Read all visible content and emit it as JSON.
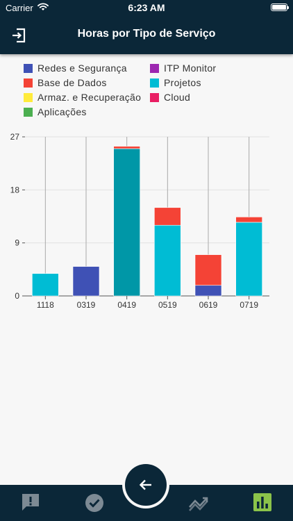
{
  "status_bar": {
    "carrier": "Carrier",
    "time": "6:23 AM"
  },
  "header": {
    "title": "Horas por Tipo de Serviço",
    "exit_icon": "exit-icon"
  },
  "legend": {
    "items": [
      {
        "label": "Redes e Segurança",
        "color": "#3f51b5"
      },
      {
        "label": "Base de Dados",
        "color": "#f44336"
      },
      {
        "label": "Armaz. e Recuperação",
        "color": "#ffeb3b"
      },
      {
        "label": "Aplicações",
        "color": "#4caf50"
      },
      {
        "label": "ITP Monitor",
        "color": "#9c27b0"
      },
      {
        "label": "Projetos",
        "color": "#00bcd4"
      },
      {
        "label": "Cloud",
        "color": "#e91e63"
      }
    ]
  },
  "chart_data": {
    "type": "bar",
    "stacked": true,
    "categories": [
      "1118",
      "0319",
      "0419",
      "0519",
      "0619",
      "0719"
    ],
    "ylim": [
      0,
      27
    ],
    "yticks": [
      "0",
      "9",
      "18",
      "27"
    ],
    "series": [
      {
        "name": "Projetos",
        "color": "#00bcd4",
        "values": [
          3.8,
          0,
          25,
          12,
          0,
          12.5
        ]
      },
      {
        "name": "Redes e Segurança",
        "color": "#3f51b5",
        "values": [
          0,
          5,
          0,
          0,
          1.8,
          0
        ]
      },
      {
        "name": "Base de Dados",
        "color": "#f44336",
        "values": [
          0,
          0,
          0.4,
          3,
          5.2,
          0.9
        ]
      }
    ],
    "highlighted_category": "0419",
    "highlight_color": "#0097a7",
    "grid": true
  },
  "tabbar": {
    "tabs": [
      {
        "icon": "alert-icon"
      },
      {
        "icon": "check-circle-icon"
      },
      {
        "icon": "trend-icon"
      },
      {
        "icon": "bar-chart-icon",
        "active": true
      }
    ],
    "fab_icon": "back-arrow-icon",
    "active_color": "#8bc34a"
  }
}
